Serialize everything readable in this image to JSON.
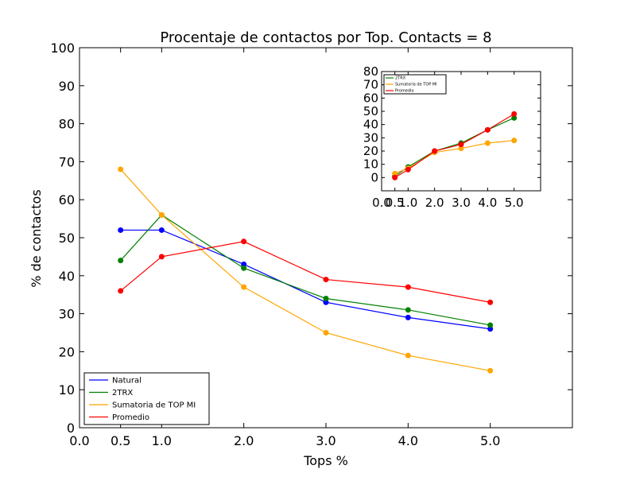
{
  "chart_data": [
    {
      "type": "line",
      "title": "Procentaje de contactos por Top. Contacts = 8",
      "xlabel": "Tops %",
      "ylabel": "% de contactos",
      "xlim": [
        0.0,
        6.0
      ],
      "ylim": [
        0,
        100
      ],
      "xticks": [
        "0.0",
        "0.5",
        "1.0",
        "2.0",
        "3.0",
        "4.0",
        "5.0"
      ],
      "yticks": [
        "0",
        "10",
        "20",
        "30",
        "40",
        "50",
        "60",
        "70",
        "80",
        "90",
        "100"
      ],
      "x": [
        0.5,
        1.0,
        2.0,
        3.0,
        4.0,
        5.0
      ],
      "grid": false,
      "legend_position": "lower-left",
      "series": [
        {
          "name": "Natural",
          "color": "#0000ff",
          "values": [
            52,
            52,
            43,
            33,
            29,
            26
          ]
        },
        {
          "name": "2TRX",
          "color": "#008000",
          "values": [
            44,
            56,
            42,
            34,
            31,
            27
          ]
        },
        {
          "name": "Sumatoria de TOP MI",
          "color": "#ffa500",
          "values": [
            68,
            56,
            37,
            25,
            19,
            15
          ]
        },
        {
          "name": "Promedio",
          "color": "#ff0000",
          "values": [
            36,
            45,
            49,
            39,
            37,
            33
          ]
        }
      ]
    },
    {
      "type": "line",
      "title": "",
      "xlim": [
        0.0,
        6.0
      ],
      "ylim": [
        -10,
        80
      ],
      "xticks": [
        "0.0",
        "0.5",
        "1.0",
        "2.0",
        "3.0",
        "4.0",
        "5.0"
      ],
      "yticks": [
        "0",
        "10",
        "20",
        "30",
        "40",
        "50",
        "60",
        "70",
        "80"
      ],
      "x": [
        0.5,
        1.0,
        2.0,
        3.0,
        4.0,
        5.0
      ],
      "grid": false,
      "legend_position": "upper-left",
      "series": [
        {
          "name": "2TRX",
          "color": "#008000",
          "values": [
            1,
            8,
            20,
            26,
            36,
            45
          ]
        },
        {
          "name": "Sumatoria de TOP MI",
          "color": "#ffa500",
          "values": [
            3,
            7,
            19,
            22,
            26,
            28
          ]
        },
        {
          "name": "Promedio",
          "color": "#ff0000",
          "values": [
            0,
            6,
            20,
            25,
            36,
            48
          ]
        }
      ]
    }
  ]
}
